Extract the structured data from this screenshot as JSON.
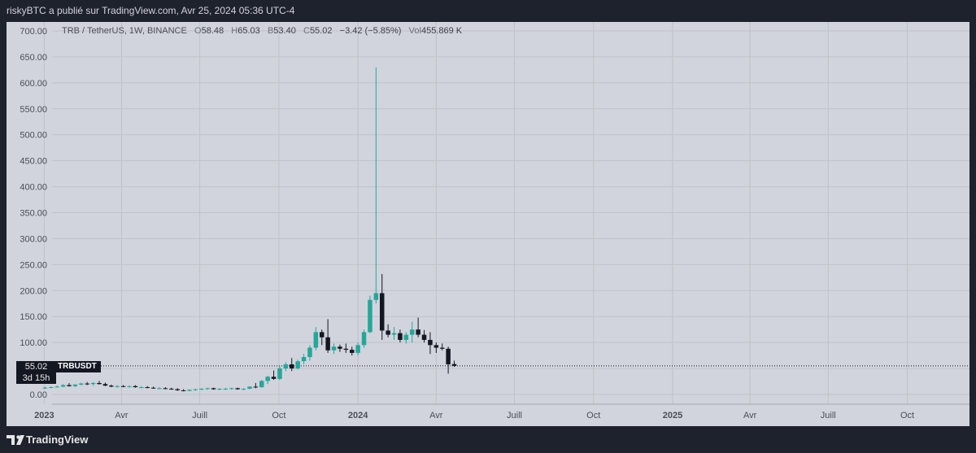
{
  "header": {
    "title": "riskyBTC a publié sur TradingView.com, Avr 25, 2024 05:36 UTC-4"
  },
  "legend": {
    "symbol": "TRB / TetherUS, 1W, BINANCE",
    "o_label": "O",
    "o_value": "58.48",
    "h_label": "H",
    "h_value": "65.03",
    "b_label": "B",
    "b_value": "53.40",
    "c_label": "C",
    "c_value": "55.02",
    "change": "−3.42 (−5.85%)",
    "vol_label": "Vol",
    "vol_value": "455.869 K"
  },
  "price_label": {
    "price": "55.02",
    "countdown": "3d 15h",
    "symbol": "TRBUSDT"
  },
  "footer": {
    "brand": "TradingView"
  },
  "colors": {
    "up": "#26a69a",
    "down": "#131722",
    "grid": "#bfc2c9",
    "plot_bg": "#d1d4dc"
  },
  "chart_data": {
    "type": "candlestick",
    "ylim": [
      0,
      700
    ],
    "y_ticks": [
      "700.00",
      "650.00",
      "600.00",
      "550.00",
      "500.00",
      "450.00",
      "400.00",
      "350.00",
      "300.00",
      "250.00",
      "200.00",
      "150.00",
      "100.00",
      "50.00",
      "0.00"
    ],
    "x_tick_labels": [
      "2023",
      "Avr",
      "Juill",
      "Oct",
      "2024",
      "Avr",
      "Juill",
      "Oct",
      "2025",
      "Avr",
      "Juill",
      "Oct"
    ],
    "last_close": 55.02,
    "candles": [
      {
        "date": "2023-01-02",
        "o": 12,
        "h": 15,
        "l": 11,
        "c": 13
      },
      {
        "date": "2023-01-09",
        "o": 13,
        "h": 16,
        "l": 12,
        "c": 14
      },
      {
        "date": "2023-01-16",
        "o": 14,
        "h": 17,
        "l": 13,
        "c": 15
      },
      {
        "date": "2023-01-23",
        "o": 15,
        "h": 20,
        "l": 14,
        "c": 18
      },
      {
        "date": "2023-01-30",
        "o": 18,
        "h": 22,
        "l": 15,
        "c": 16
      },
      {
        "date": "2023-02-06",
        "o": 16,
        "h": 20,
        "l": 14,
        "c": 19
      },
      {
        "date": "2023-02-13",
        "o": 19,
        "h": 23,
        "l": 17,
        "c": 21
      },
      {
        "date": "2023-02-20",
        "o": 21,
        "h": 24,
        "l": 18,
        "c": 20
      },
      {
        "date": "2023-02-27",
        "o": 20,
        "h": 24,
        "l": 17,
        "c": 22
      },
      {
        "date": "2023-03-06",
        "o": 22,
        "h": 26,
        "l": 19,
        "c": 20
      },
      {
        "date": "2023-03-13",
        "o": 20,
        "h": 23,
        "l": 16,
        "c": 17
      },
      {
        "date": "2023-03-20",
        "o": 17,
        "h": 19,
        "l": 14,
        "c": 15
      },
      {
        "date": "2023-03-27",
        "o": 15,
        "h": 18,
        "l": 13,
        "c": 16
      },
      {
        "date": "2023-04-03",
        "o": 16,
        "h": 18,
        "l": 14,
        "c": 15
      },
      {
        "date": "2023-04-10",
        "o": 15,
        "h": 17,
        "l": 13,
        "c": 16
      },
      {
        "date": "2023-04-17",
        "o": 16,
        "h": 18,
        "l": 13,
        "c": 14
      },
      {
        "date": "2023-04-24",
        "o": 14,
        "h": 16,
        "l": 12,
        "c": 14
      },
      {
        "date": "2023-05-01",
        "o": 14,
        "h": 16,
        "l": 12,
        "c": 13
      },
      {
        "date": "2023-05-08",
        "o": 13,
        "h": 15,
        "l": 11,
        "c": 12
      },
      {
        "date": "2023-05-15",
        "o": 12,
        "h": 14,
        "l": 10,
        "c": 12
      },
      {
        "date": "2023-05-22",
        "o": 12,
        "h": 14,
        "l": 10,
        "c": 11
      },
      {
        "date": "2023-05-29",
        "o": 11,
        "h": 13,
        "l": 9,
        "c": 10
      },
      {
        "date": "2023-06-05",
        "o": 10,
        "h": 12,
        "l": 7,
        "c": 8
      },
      {
        "date": "2023-06-12",
        "o": 8,
        "h": 10,
        "l": 6,
        "c": 7
      },
      {
        "date": "2023-06-19",
        "o": 7,
        "h": 10,
        "l": 6,
        "c": 9
      },
      {
        "date": "2023-06-26",
        "o": 9,
        "h": 11,
        "l": 7,
        "c": 10
      },
      {
        "date": "2023-07-03",
        "o": 10,
        "h": 12,
        "l": 8,
        "c": 11
      },
      {
        "date": "2023-07-10",
        "o": 11,
        "h": 13,
        "l": 9,
        "c": 12
      },
      {
        "date": "2023-07-17",
        "o": 12,
        "h": 13,
        "l": 9,
        "c": 10
      },
      {
        "date": "2023-07-24",
        "o": 10,
        "h": 12,
        "l": 8,
        "c": 11
      },
      {
        "date": "2023-07-31",
        "o": 11,
        "h": 13,
        "l": 9,
        "c": 11
      },
      {
        "date": "2023-08-07",
        "o": 11,
        "h": 13,
        "l": 9,
        "c": 12
      },
      {
        "date": "2023-08-14",
        "o": 12,
        "h": 13,
        "l": 9,
        "c": 10
      },
      {
        "date": "2023-08-21",
        "o": 10,
        "h": 12,
        "l": 8,
        "c": 11
      },
      {
        "date": "2023-08-28",
        "o": 11,
        "h": 16,
        "l": 10,
        "c": 15
      },
      {
        "date": "2023-09-04",
        "o": 15,
        "h": 22,
        "l": 12,
        "c": 14
      },
      {
        "date": "2023-09-11",
        "o": 14,
        "h": 28,
        "l": 13,
        "c": 26
      },
      {
        "date": "2023-09-18",
        "o": 26,
        "h": 36,
        "l": 20,
        "c": 34
      },
      {
        "date": "2023-09-25",
        "o": 34,
        "h": 46,
        "l": 28,
        "c": 30
      },
      {
        "date": "2023-10-02",
        "o": 30,
        "h": 55,
        "l": 28,
        "c": 50
      },
      {
        "date": "2023-10-09",
        "o": 50,
        "h": 62,
        "l": 45,
        "c": 58
      },
      {
        "date": "2023-10-16",
        "o": 58,
        "h": 70,
        "l": 45,
        "c": 50
      },
      {
        "date": "2023-10-23",
        "o": 50,
        "h": 67,
        "l": 48,
        "c": 64
      },
      {
        "date": "2023-10-30",
        "o": 64,
        "h": 78,
        "l": 58,
        "c": 72
      },
      {
        "date": "2023-11-06",
        "o": 72,
        "h": 95,
        "l": 65,
        "c": 90
      },
      {
        "date": "2023-11-13",
        "o": 90,
        "h": 130,
        "l": 85,
        "c": 120
      },
      {
        "date": "2023-11-20",
        "o": 120,
        "h": 125,
        "l": 95,
        "c": 110
      },
      {
        "date": "2023-11-27",
        "o": 110,
        "h": 145,
        "l": 80,
        "c": 85
      },
      {
        "date": "2023-12-04",
        "o": 85,
        "h": 98,
        "l": 78,
        "c": 92
      },
      {
        "date": "2023-12-11",
        "o": 92,
        "h": 96,
        "l": 82,
        "c": 88
      },
      {
        "date": "2023-12-18",
        "o": 88,
        "h": 98,
        "l": 80,
        "c": 86
      },
      {
        "date": "2023-12-25",
        "o": 86,
        "h": 92,
        "l": 75,
        "c": 80
      },
      {
        "date": "2024-01-01",
        "o": 80,
        "h": 100,
        "l": 75,
        "c": 95
      },
      {
        "date": "2024-01-08",
        "o": 95,
        "h": 125,
        "l": 90,
        "c": 120
      },
      {
        "date": "2024-01-15",
        "o": 120,
        "h": 190,
        "l": 118,
        "c": 182
      },
      {
        "date": "2024-01-22",
        "o": 182,
        "h": 630,
        "l": 175,
        "c": 195
      },
      {
        "date": "2024-01-29",
        "o": 195,
        "h": 232,
        "l": 105,
        "c": 123
      },
      {
        "date": "2024-02-05",
        "o": 123,
        "h": 135,
        "l": 110,
        "c": 115
      },
      {
        "date": "2024-02-12",
        "o": 115,
        "h": 130,
        "l": 105,
        "c": 118
      },
      {
        "date": "2024-02-19",
        "o": 118,
        "h": 125,
        "l": 100,
        "c": 105
      },
      {
        "date": "2024-02-26",
        "o": 105,
        "h": 120,
        "l": 98,
        "c": 115
      },
      {
        "date": "2024-03-04",
        "o": 115,
        "h": 140,
        "l": 100,
        "c": 125
      },
      {
        "date": "2024-03-11",
        "o": 125,
        "h": 148,
        "l": 110,
        "c": 115
      },
      {
        "date": "2024-03-18",
        "o": 115,
        "h": 124,
        "l": 100,
        "c": 105
      },
      {
        "date": "2024-03-25",
        "o": 105,
        "h": 120,
        "l": 78,
        "c": 95
      },
      {
        "date": "2024-04-01",
        "o": 95,
        "h": 100,
        "l": 80,
        "c": 90
      },
      {
        "date": "2024-04-08",
        "o": 90,
        "h": 98,
        "l": 85,
        "c": 88
      },
      {
        "date": "2024-04-15",
        "o": 88,
        "h": 92,
        "l": 40,
        "c": 58
      },
      {
        "date": "2024-04-22",
        "o": 58.48,
        "h": 65.03,
        "l": 53.4,
        "c": 55.02
      }
    ]
  }
}
